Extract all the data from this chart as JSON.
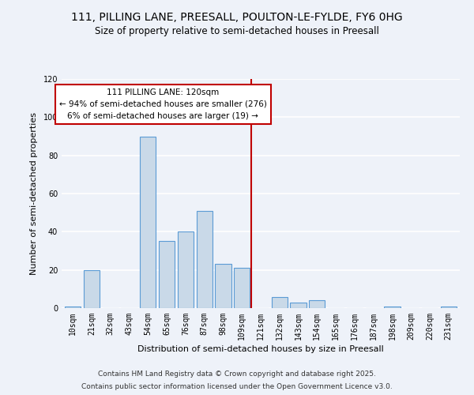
{
  "title": "111, PILLING LANE, PREESALL, POULTON-LE-FYLDE, FY6 0HG",
  "subtitle": "Size of property relative to semi-detached houses in Preesall",
  "xlabel": "Distribution of semi-detached houses by size in Preesall",
  "ylabel": "Number of semi-detached properties",
  "bin_labels": [
    "10sqm",
    "21sqm",
    "32sqm",
    "43sqm",
    "54sqm",
    "65sqm",
    "76sqm",
    "87sqm",
    "98sqm",
    "109sqm",
    "121sqm",
    "132sqm",
    "143sqm",
    "154sqm",
    "165sqm",
    "176sqm",
    "187sqm",
    "198sqm",
    "209sqm",
    "220sqm",
    "231sqm"
  ],
  "bar_values": [
    1,
    20,
    0,
    0,
    90,
    35,
    40,
    51,
    23,
    21,
    0,
    6,
    3,
    4,
    0,
    0,
    0,
    1,
    0,
    0,
    1
  ],
  "bar_color": "#c9d9e8",
  "bar_edge_color": "#5b9bd5",
  "vline_color": "#c00000",
  "annotation_title": "111 PILLING LANE: 120sqm",
  "annotation_line1": "← 94% of semi-detached houses are smaller (276)",
  "annotation_line2": "6% of semi-detached houses are larger (19) →",
  "annotation_box_color": "#c00000",
  "ylim": [
    0,
    120
  ],
  "yticks": [
    0,
    20,
    40,
    60,
    80,
    100,
    120
  ],
  "footer1": "Contains HM Land Registry data © Crown copyright and database right 2025.",
  "footer2": "Contains public sector information licensed under the Open Government Licence v3.0.",
  "bg_color": "#eef2f9",
  "plot_bg_color": "#eef2f9",
  "grid_color": "#ffffff",
  "title_fontsize": 10,
  "subtitle_fontsize": 8.5,
  "axis_label_fontsize": 8,
  "tick_fontsize": 7,
  "footer_fontsize": 6.5,
  "annot_fontsize": 7.5
}
